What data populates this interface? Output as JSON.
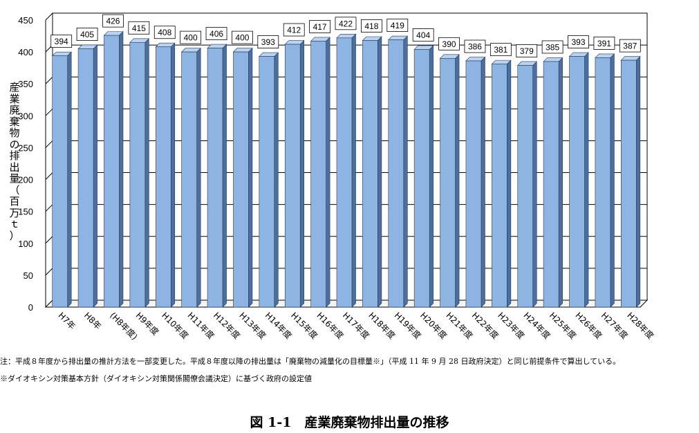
{
  "chart_data": {
    "type": "bar",
    "categories": [
      "H7年",
      "H8年",
      "(H8年度)",
      "H9年度",
      "H10年度",
      "H11年度",
      "H12年度",
      "H13年度",
      "H14年度",
      "H15年度",
      "H16年度",
      "H17年度",
      "H18年度",
      "H19年度",
      "H20年度",
      "H21年度",
      "H22年度",
      "H23年度",
      "H24年度",
      "H25年度",
      "H26年度",
      "H27年度",
      "H28年度"
    ],
    "values": [
      394,
      405,
      426,
      415,
      408,
      400,
      406,
      400,
      393,
      412,
      417,
      422,
      418,
      419,
      404,
      390,
      386,
      381,
      379,
      385,
      393,
      391,
      387
    ],
    "ylabel": "産業廃棄物の排出量（百万ｔ）",
    "ylim": [
      0,
      450
    ],
    "yticks": [
      0,
      50,
      100,
      150,
      200,
      250,
      300,
      350,
      400,
      450
    ],
    "grid": true,
    "style": "3d",
    "colors": {
      "bar_front": "#8eb4e3",
      "bar_side": "#4f6f99",
      "bar_top": "#bcd3f0",
      "bar_edge": "#1f3a5f",
      "grid": "#000000"
    }
  },
  "notes": {
    "note1": "注：平成８年度から排出量の推計方法を一部変更した。平成８年度以降の排出量は「廃棄物の減量化の目標量※」（平成 11 年 9 月 28 日政府決定）と同じ前提条件で算出している。",
    "note2": "※ダイオキシン対策基本方針（ダイオキシン対策関係閣僚会議決定）に基づく政府の設定値"
  },
  "caption": "図 1-1　産業廃棄物排出量の推移"
}
